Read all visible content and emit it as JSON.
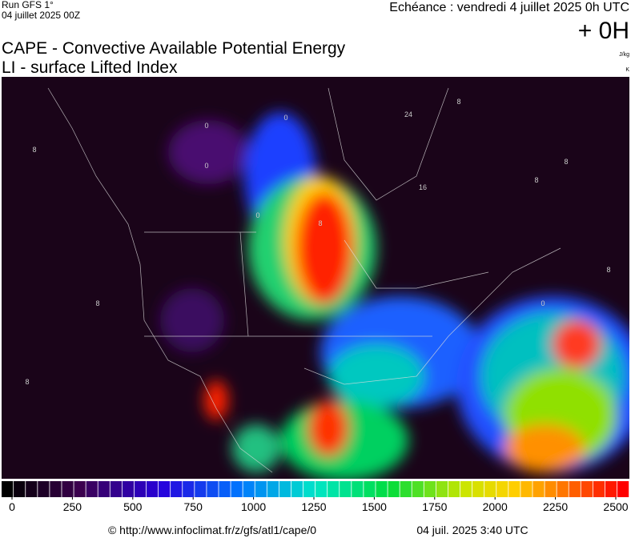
{
  "header": {
    "run": "Run GFS 1°",
    "run_date": "04 juillet 2025 00Z",
    "valid": "Echéance : vendredi 4 juillet 2025 0h UTC",
    "lead": "+ 0H",
    "title": "CAPE - Convective Available Potential Energy",
    "subtitle": "LI - surface Lifted Index",
    "unit_cape": "J/kg",
    "unit_li": "K"
  },
  "map": {
    "contour_labels": [
      "0",
      "0",
      "0",
      "0",
      "8",
      "8",
      "8",
      "24",
      "16",
      "8",
      "8",
      "8",
      "8",
      "8",
      "0"
    ]
  },
  "colorbar": {
    "range": [
      0,
      2500
    ],
    "ticks": [
      0,
      250,
      500,
      750,
      1000,
      1250,
      1500,
      1750,
      2000,
      2250,
      2500
    ]
  },
  "footer": {
    "source": "© http://www.infoclimat.fr/z/gfs/atl1/cape/0",
    "generated": "04 juil. 2025  3:40 UTC"
  }
}
